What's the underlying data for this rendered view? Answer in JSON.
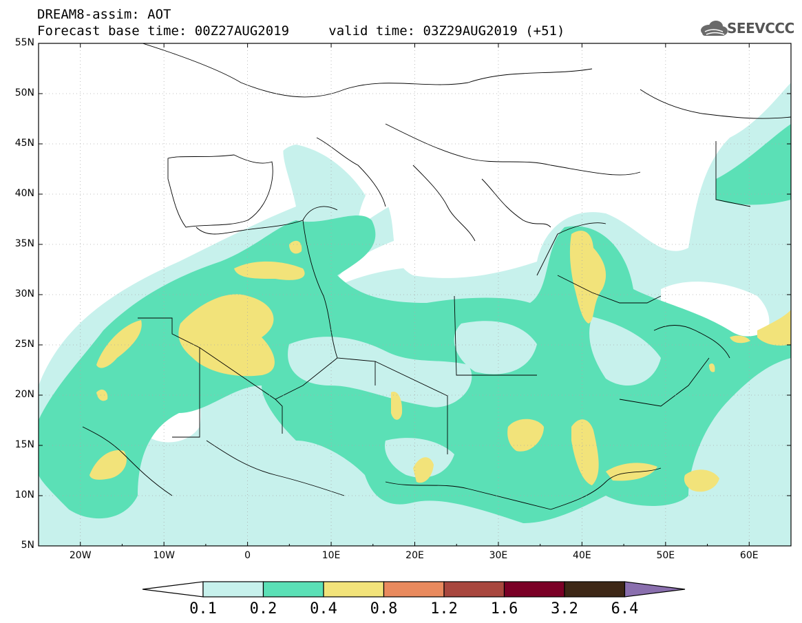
{
  "header": {
    "title": "DREAM8-assim: AOT",
    "base_time_label": "Forecast base time: 00Z27AUG2019",
    "valid_time_label": "valid time: 03Z29AUG2019 (+51)"
  },
  "logo": {
    "text": "SEEVCCC",
    "icon": "cloud-logo-icon"
  },
  "map": {
    "lat_labels": [
      "55N",
      "50N",
      "45N",
      "40N",
      "35N",
      "30N",
      "25N",
      "20N",
      "15N",
      "10N",
      "5N"
    ],
    "lon_labels": [
      "20W",
      "10W",
      "0",
      "10E",
      "20E",
      "30E",
      "40E",
      "50E",
      "60E"
    ],
    "lat_range": [
      5,
      55
    ],
    "lon_range": [
      -25,
      65
    ]
  },
  "colorbar": {
    "labels": [
      "0.1",
      "0.2",
      "0.4",
      "0.8",
      "1.2",
      "1.6",
      "3.2",
      "6.4"
    ],
    "colors": [
      "#c7f1ec",
      "#5be0b6",
      "#f2e37a",
      "#e98a5e",
      "#a8473e",
      "#7a0026",
      "#3d2716",
      "#8a6fae"
    ]
  }
}
